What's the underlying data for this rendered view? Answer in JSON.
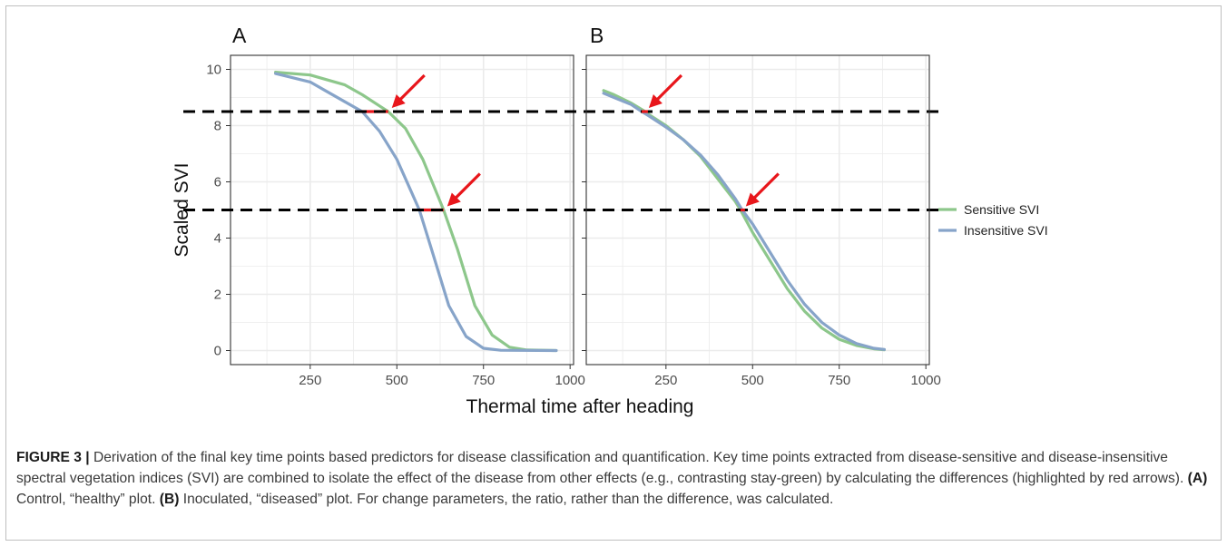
{
  "figure": {
    "caption_label": "FIGURE 3 |",
    "caption_part1": " Derivation of the final key time points based predictors for disease classification and quantification. Key time points extracted from disease-sensitive and disease-insensitive spectral vegetation indices (SVI) are combined to isolate the effect of the disease from other effects (e.g., contrasting stay-green) by calculating the differences (highlighted by red arrows). ",
    "caption_a": "(A)",
    "caption_part2": " Control, “healthy” plot. ",
    "caption_b": "(B)",
    "caption_part3": " Inoculated, “diseased” plot. For change parameters, the ratio, rather than the difference, was calculated."
  },
  "colors": {
    "sensitive": "#8dc78b",
    "insensitive": "#87a4c9",
    "arrow": "#e8161b",
    "threshold": "#000000",
    "grid": "#ebebeb"
  },
  "chart_data": [
    {
      "type": "line",
      "panel_label": "A",
      "xlabel": "Thermal time after heading",
      "ylabel": "Scaled SVI",
      "xlim": [
        20,
        1010
      ],
      "ylim": [
        -0.5,
        10.5
      ],
      "xticks": [
        250,
        500,
        750,
        1000
      ],
      "yticks": [
        0,
        2,
        4,
        6,
        8,
        10
      ],
      "grid": true,
      "legend": "right",
      "thresholds": [
        8.5,
        5
      ],
      "series": [
        {
          "name": "Sensitive SVI",
          "color": "#8dc78b",
          "x": [
            150,
            250,
            350,
            400,
            450,
            475,
            525,
            575,
            625,
            635,
            675,
            725,
            775,
            825,
            875,
            960
          ],
          "y": [
            9.9,
            9.8,
            9.45,
            9.1,
            8.7,
            8.5,
            7.9,
            6.8,
            5.3,
            5.0,
            3.6,
            1.6,
            0.55,
            0.12,
            0.02,
            0.0
          ]
        },
        {
          "name": "Insensitive SVI",
          "color": "#87a4c9",
          "x": [
            150,
            250,
            300,
            350,
            400,
            450,
            500,
            540,
            565,
            600,
            650,
            700,
            750,
            800,
            960
          ],
          "y": [
            9.85,
            9.55,
            9.2,
            8.85,
            8.5,
            7.8,
            6.8,
            5.7,
            5.0,
            3.6,
            1.6,
            0.5,
            0.08,
            0.01,
            0.0
          ]
        }
      ],
      "differences": [
        {
          "y": 8.5,
          "x_from": 400,
          "x_to": 475
        },
        {
          "y": 5,
          "x_from": 565,
          "x_to": 635
        }
      ]
    },
    {
      "type": "line",
      "panel_label": "B",
      "xlabel": "Thermal time after heading",
      "xlim": [
        20,
        1010
      ],
      "ylim": [
        -0.5,
        10.5
      ],
      "xticks": [
        250,
        500,
        750,
        1000
      ],
      "yticks": [
        0,
        2,
        4,
        6,
        8,
        10
      ],
      "grid": true,
      "thresholds": [
        8.5,
        5
      ],
      "series": [
        {
          "name": "Sensitive SVI",
          "color": "#8dc78b",
          "x": [
            70,
            100,
            150,
            190,
            200,
            250,
            300,
            350,
            400,
            450,
            465,
            500,
            550,
            600,
            650,
            700,
            750,
            800,
            850,
            880
          ],
          "y": [
            9.25,
            9.1,
            8.8,
            8.5,
            8.4,
            8.0,
            7.5,
            6.9,
            6.1,
            5.3,
            5.0,
            4.2,
            3.2,
            2.2,
            1.4,
            0.8,
            0.4,
            0.18,
            0.06,
            0.03
          ]
        },
        {
          "name": "Insensitive SVI",
          "color": "#87a4c9",
          "x": [
            70,
            100,
            150,
            180,
            200,
            250,
            300,
            350,
            400,
            450,
            470,
            500,
            550,
            600,
            650,
            700,
            750,
            800,
            850,
            880
          ],
          "y": [
            9.15,
            9.0,
            8.75,
            8.5,
            8.35,
            7.95,
            7.5,
            6.95,
            6.25,
            5.4,
            5.0,
            4.5,
            3.5,
            2.5,
            1.65,
            1.0,
            0.55,
            0.25,
            0.08,
            0.04
          ]
        }
      ],
      "differences": [
        {
          "y": 8.5,
          "x_from": 180,
          "x_to": 190
        },
        {
          "y": 5,
          "x_from": 465,
          "x_to": 470
        }
      ]
    }
  ]
}
